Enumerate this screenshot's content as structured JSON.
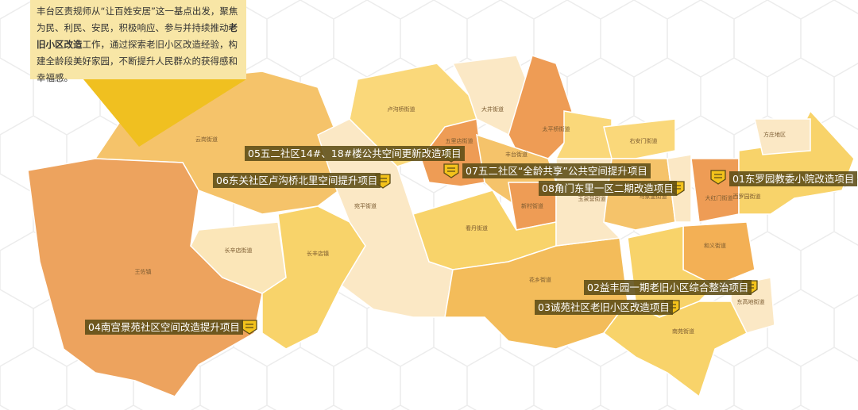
{
  "intro": {
    "before": "丰台区责规师从“让百姓安居”这一基点出发，聚焦为民、利民、安民，积极响应、参与并持续推动",
    "bold": "老旧小区改造",
    "after": "工作，通过探索老旧小区改造经验，构建全龄段美好家园，不断提升人民群众的获得感和幸福感。"
  },
  "districts": [
    "云岗街道",
    "王佐镇",
    "长辛店街道",
    "长辛店镇",
    "宛平街道",
    "卢沟桥街道",
    "五里店街道",
    "大井街道",
    "太平桥街道",
    "丰台街道",
    "新村街道",
    "看丹街道",
    "花乡街道",
    "南苑街道",
    "右安门街道",
    "马家堡街道",
    "大红门街道",
    "西罗园街道",
    "方庄地区",
    "东铁匠营街道",
    "和义街道",
    "东高地街道",
    "玉泉营街道"
  ],
  "projects": [
    "05五二社区14#、18#楼公共空间更新改造项目",
    "07五二社区“全龄共享”公共空间提升项目",
    "06东关社区卢沟桥北里空间提升项目",
    "08角门东里一区二期改造项目",
    "01东罗园教委小院改造项目",
    "02益丰园一期老旧小区综合整治项目",
    "03诚苑社区老旧小区改造项目",
    "04南宫景苑社区空间改造提升项目"
  ]
}
